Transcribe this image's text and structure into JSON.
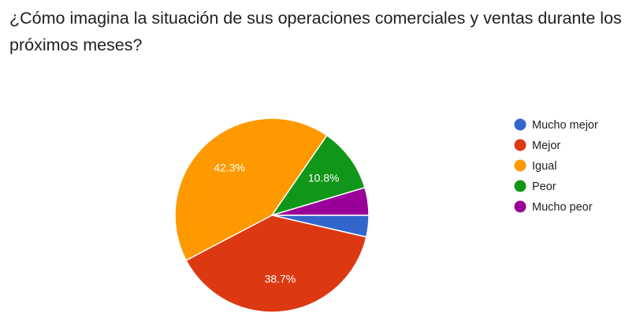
{
  "question": {
    "title": "¿Cómo imagina la situación de sus operaciones comerciales y ventas durante los próximos meses?"
  },
  "chart_data": {
    "type": "pie",
    "legend_position": "right",
    "series": [
      {
        "name": "Mucho mejor",
        "value": 3.6,
        "color": "#3366cc",
        "label": ""
      },
      {
        "name": "Mejor",
        "value": 38.7,
        "color": "#dc3912",
        "label": "38.7%"
      },
      {
        "name": "Igual",
        "value": 42.3,
        "color": "#ff9900",
        "label": "42.3%"
      },
      {
        "name": "Peor",
        "value": 10.8,
        "color": "#109618",
        "label": "10.8%"
      },
      {
        "name": "Mucho peor",
        "value": 4.6,
        "color": "#990099",
        "label": ""
      }
    ]
  }
}
